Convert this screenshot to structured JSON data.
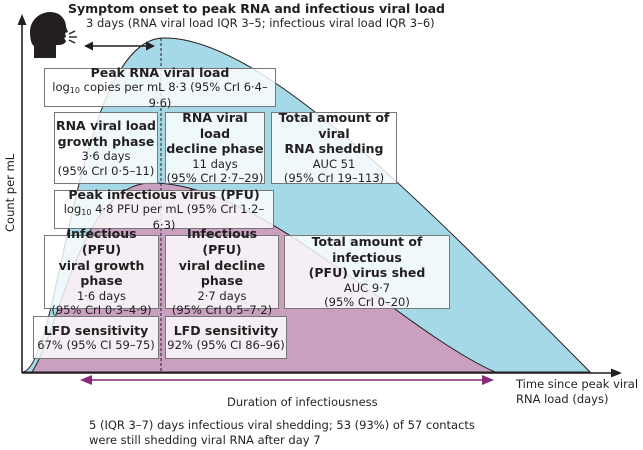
{
  "top": {
    "title": "Symptom onset to peak RNA and infectious viral load",
    "subtitle": "3 days (RNA viral load IQR 3–5; infectious viral load IQR 3–6)"
  },
  "axes": {
    "y_label": "Count per mL",
    "x_label_1": "Time since peak viral",
    "x_label_2": "RNA load (days)"
  },
  "boxes": {
    "peak_rna": {
      "title": "Peak RNA viral load",
      "value_prefix": "log",
      "value_sub": "10",
      "value_rest": " copies per mL 8·3 (95% CrI 6·4–9·6)"
    },
    "rna_growth": {
      "title_1": "RNA viral load",
      "title_2": "growth phase",
      "value": "3·6 days",
      "ci": "(95% CrI 0·5–11)"
    },
    "rna_decline": {
      "title_1": "RNA viral load",
      "title_2": "decline phase",
      "value": "11 days",
      "ci": "(95% CrI 2·7–29)"
    },
    "rna_total": {
      "title_1": "Total amount of viral",
      "title_2": "RNA shedding",
      "value": "AUC 51",
      "ci": "(95% CrI 19–113)"
    },
    "peak_pfu": {
      "title": "Peak infectious virus (PFU)",
      "value_prefix": "log",
      "value_sub": "10",
      "value_rest": " 4·8 PFU per mL (95% CrI 1·2–6·3)"
    },
    "pfu_growth": {
      "title_1": "Infectious (PFU)",
      "title_2": "viral growth phase",
      "value": "1·6 days",
      "ci": "(95% CrI 0·3–4·9)"
    },
    "pfu_decline": {
      "title_1": "Infectious (PFU)",
      "title_2": "viral decline phase",
      "value": "2·7 days",
      "ci": "(95% CrI 0·5–7·2)"
    },
    "pfu_total": {
      "title_1": "Total amount of infectious",
      "title_2": "(PFU) virus shed",
      "value": "AUC 9·7",
      "ci": "(95% CrI 0–20)"
    },
    "lfd_1": {
      "title": "LFD sensitivity",
      "value": "67% (95% CI 59–75)"
    },
    "lfd_2": {
      "title": "LFD sensitivity",
      "value": "92% (95% CI 86–96)"
    }
  },
  "duration": {
    "label": "Duration of infectiousness",
    "note_1": "5 (IQR 3–7) days infectious viral shedding; 53 (93%) of 57 contacts",
    "note_2": "were still shedding viral RNA after day 7"
  },
  "colors": {
    "rna_curve": "#a6d9e8",
    "pfu_curve": "#c9a0c0",
    "arrow": "#8a2a7a",
    "axis": "#231f20"
  },
  "icons": {
    "head": "person-coughing-icon"
  }
}
